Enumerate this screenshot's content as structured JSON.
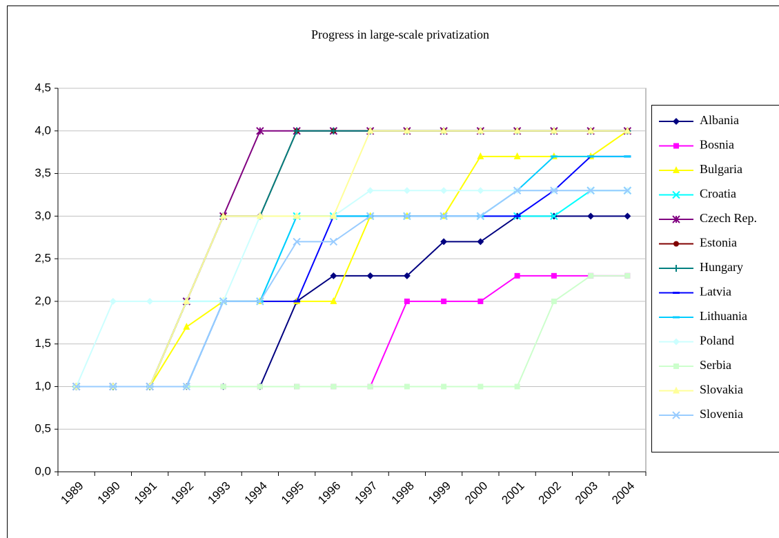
{
  "chart_data": {
    "type": "line",
    "title": "Progress in large-scale privatization",
    "categories": [
      "1989",
      "1990",
      "1991",
      "1992",
      "1993",
      "1994",
      "1995",
      "1996",
      "1997",
      "1998",
      "1999",
      "2000",
      "2001",
      "2002",
      "2003",
      "2004"
    ],
    "ylim": [
      0,
      4.5
    ],
    "yticks": [
      {
        "value": 0,
        "label": "0,0"
      },
      {
        "value": 0.5,
        "label": "0,5"
      },
      {
        "value": 1,
        "label": "1,0"
      },
      {
        "value": 1.5,
        "label": "1,5"
      },
      {
        "value": 2,
        "label": "2,0"
      },
      {
        "value": 2.5,
        "label": "2,5"
      },
      {
        "value": 3,
        "label": "3,0"
      },
      {
        "value": 3.5,
        "label": "3,5"
      },
      {
        "value": 4,
        "label": "4,0"
      },
      {
        "value": 4.5,
        "label": "4,5"
      }
    ],
    "grid": true,
    "legend": "right",
    "series": [
      {
        "name": "Albania",
        "color": "#000080",
        "marker": "diamond",
        "values": [
          1,
          1,
          1,
          1,
          1,
          1,
          2,
          2.3,
          2.3,
          2.3,
          2.7,
          2.7,
          3,
          3,
          3,
          3
        ]
      },
      {
        "name": "Bosnia",
        "color": "#FF00FF",
        "marker": "square",
        "values": [
          1,
          1,
          1,
          1,
          1,
          1,
          1,
          1,
          1,
          2,
          2,
          2,
          2.3,
          2.3,
          2.3,
          2.3
        ]
      },
      {
        "name": "Bulgaria",
        "color": "#FFFF00",
        "marker": "triangle",
        "values": [
          1,
          1,
          1,
          1.7,
          2,
          2,
          2,
          2,
          3,
          3,
          3,
          3.7,
          3.7,
          3.7,
          3.7,
          4
        ]
      },
      {
        "name": "Croatia",
        "color": "#00FFFF",
        "marker": "x",
        "values": [
          1,
          1,
          1,
          2,
          2,
          2,
          3,
          3,
          3,
          3,
          3,
          3,
          3,
          3,
          3.3,
          3.3
        ]
      },
      {
        "name": "Czech Rep.",
        "color": "#800080",
        "marker": "star",
        "values": [
          1,
          1,
          1,
          2,
          3,
          4,
          4,
          4,
          4,
          4,
          4,
          4,
          4,
          4,
          4,
          4
        ]
      },
      {
        "name": "Estonia",
        "color": "#800000",
        "marker": "circle",
        "values": [
          1,
          1,
          1,
          2,
          3,
          3,
          4,
          4,
          4,
          4,
          4,
          4,
          4,
          4,
          4,
          4
        ]
      },
      {
        "name": "Hungary",
        "color": "#008080",
        "marker": "plus",
        "values": [
          1,
          1,
          1,
          2,
          3,
          3,
          4,
          4,
          4,
          4,
          4,
          4,
          4,
          4,
          4,
          4
        ]
      },
      {
        "name": "Latvia",
        "color": "#0000FF",
        "marker": "dash",
        "values": [
          1,
          1,
          1,
          1,
          2,
          2,
          2,
          3,
          3,
          3,
          3,
          3,
          3,
          3.3,
          3.7,
          3.7
        ]
      },
      {
        "name": "Lithuania",
        "color": "#00CCFF",
        "marker": "dash",
        "values": [
          1,
          1,
          1,
          1,
          2,
          2,
          3,
          3,
          3,
          3,
          3,
          3,
          3.3,
          3.7,
          3.7,
          3.7
        ]
      },
      {
        "name": "Poland",
        "color": "#CCFFFF",
        "marker": "diamond",
        "values": [
          1,
          2,
          2,
          2,
          2,
          3,
          3,
          3,
          3.3,
          3.3,
          3.3,
          3.3,
          3.3,
          3.3,
          3.3,
          3.3
        ]
      },
      {
        "name": "Serbia",
        "color": "#CCFFCC",
        "marker": "square",
        "values": [
          1,
          1,
          1,
          1,
          1,
          1,
          1,
          1,
          1,
          1,
          1,
          1,
          1,
          2,
          2.3,
          2.3
        ]
      },
      {
        "name": "Slovakia",
        "color": "#FFFF99",
        "marker": "triangle",
        "values": [
          1,
          1,
          1,
          2,
          3,
          3,
          3,
          3,
          4,
          4,
          4,
          4,
          4,
          4,
          4,
          4
        ]
      },
      {
        "name": "Slovenia",
        "color": "#99CCFF",
        "marker": "x",
        "values": [
          1,
          1,
          1,
          1,
          2,
          2,
          2.7,
          2.7,
          3,
          3,
          3,
          3,
          3.3,
          3.3,
          3.3,
          3.3
        ]
      }
    ]
  }
}
